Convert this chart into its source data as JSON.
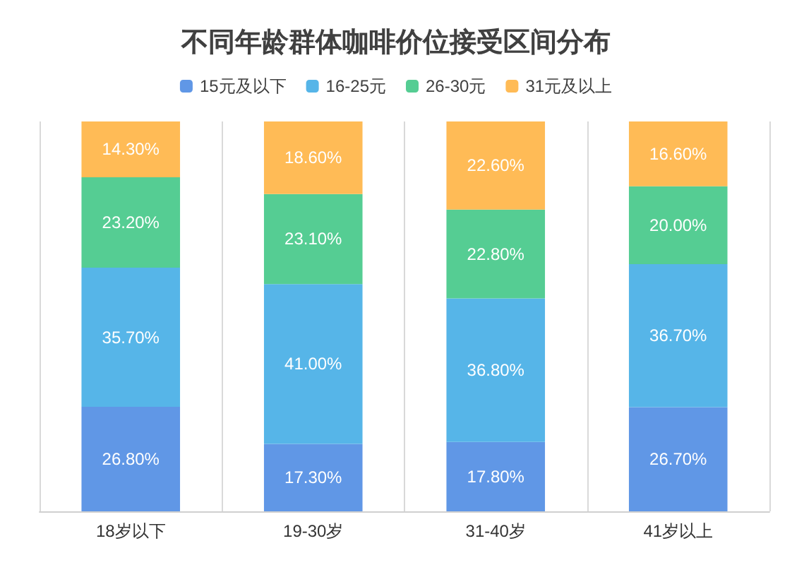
{
  "chart_data": {
    "type": "bar",
    "title": "不同年龄群体咖啡价位接受区间分布",
    "categories": [
      "18岁以下",
      "19-30岁",
      "31-40岁",
      "41岁以上"
    ],
    "stacked": true,
    "grid": "x",
    "legend": "top",
    "series": [
      {
        "name": "15元及以下",
        "color": "#6097e6",
        "values": [
          26.8,
          17.3,
          17.8,
          26.7
        ],
        "value_labels": [
          "26.80%",
          "17.30%",
          "17.80%",
          "26.70%"
        ]
      },
      {
        "name": "16-25元",
        "color": "#56b5e8",
        "values": [
          35.7,
          41.0,
          36.8,
          36.7
        ],
        "value_labels": [
          "35.70%",
          "41.00%",
          "36.80%",
          "36.70%"
        ]
      },
      {
        "name": "26-30元",
        "color": "#55cd93",
        "values": [
          23.2,
          23.1,
          22.8,
          20.0
        ],
        "value_labels": [
          "23.20%",
          "23.10%",
          "22.80%",
          "20.00%"
        ]
      },
      {
        "name": "31元及以上",
        "color": "#ffbb56",
        "values": [
          14.3,
          18.6,
          22.6,
          16.6
        ],
        "value_labels": [
          "14.30%",
          "18.60%",
          "22.60%",
          "16.60%"
        ]
      }
    ]
  }
}
